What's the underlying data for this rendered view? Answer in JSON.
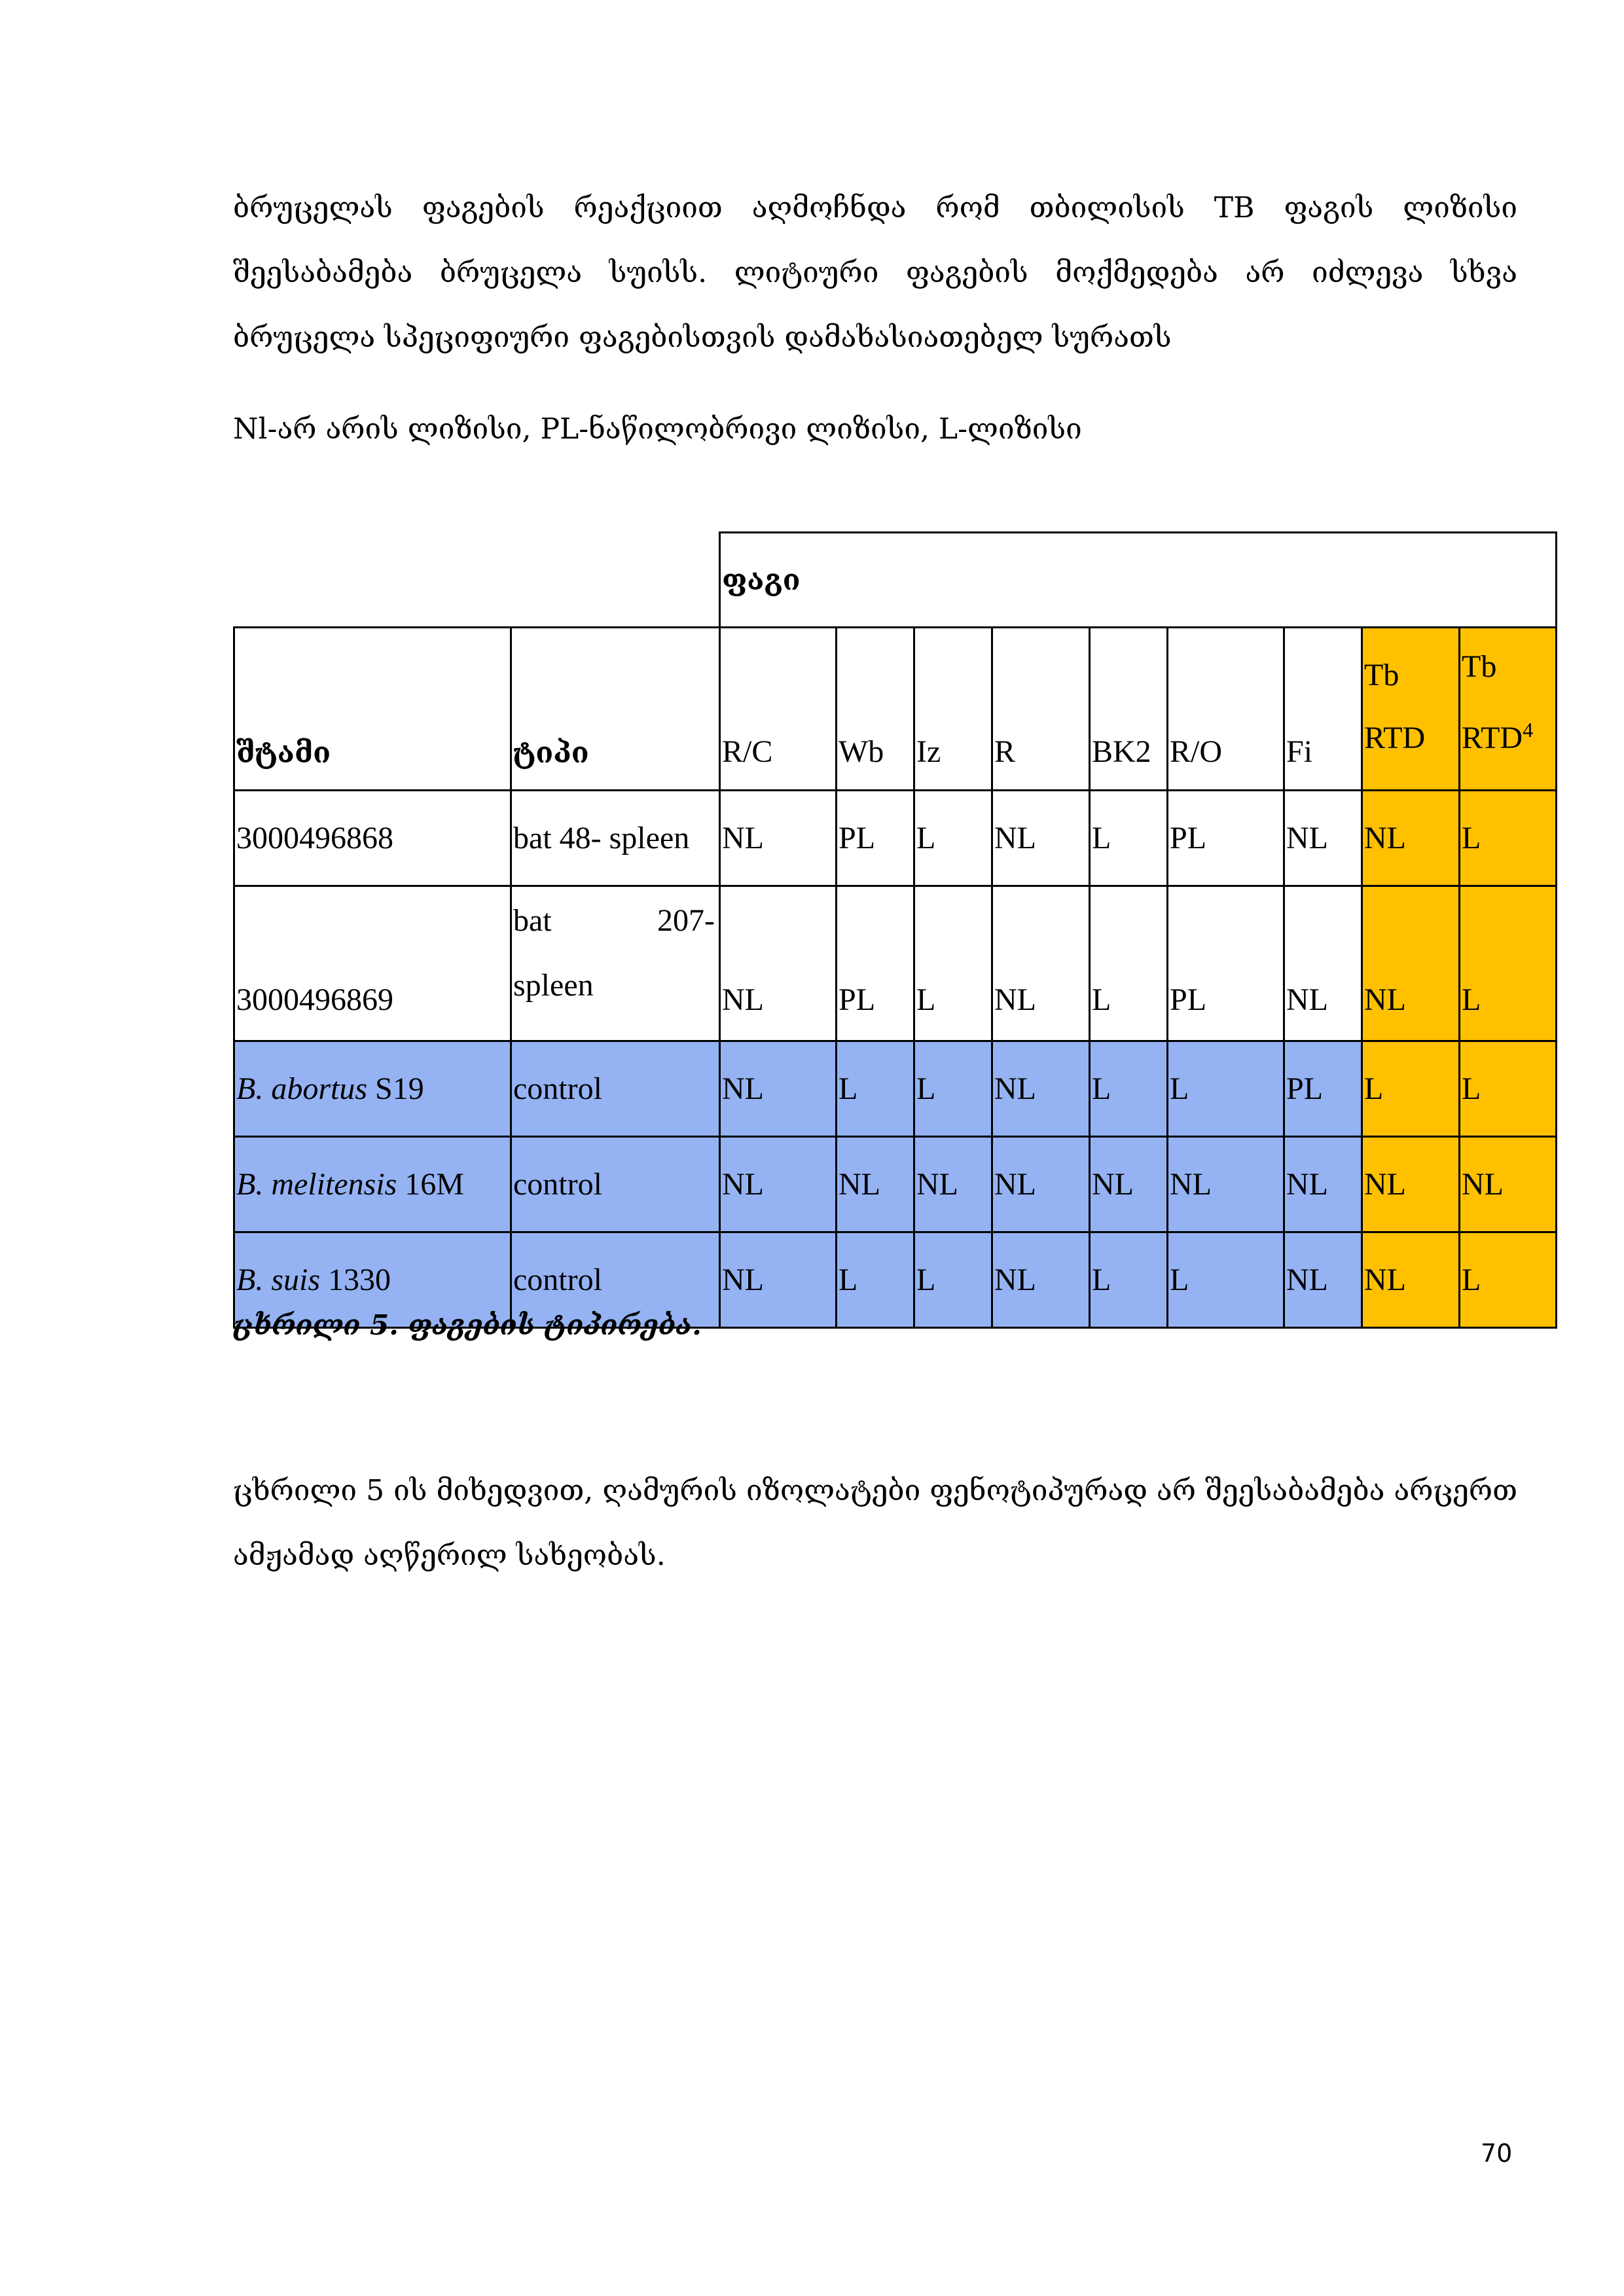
{
  "paragraphs": [
    "ბრუცელას ფაგების რეაქციით აღმოჩნდა რომ თბილისის TB ფაგის ლიზისი შეესაბამება ბრუცელა სუისს. ლიტიური ფაგების მოქმედება არ იძლევა სხვა ბრუცელა სპეციფიური ფაგებისთვის დამახასიათებელ სურათს",
    "Nl-არ არის ლიზისი, PL-ნაწილობრივი ლიზისი, L-ლიზისი",
    "ცხრილი 5 ის მიხედვით, ღამურის იზოლატები ფენოტიპურად არ შეესაბამება არცერთ ამჟამად აღწერილ სახეობას."
  ],
  "table": {
    "group_header": "ფაგი",
    "headers": {
      "strain": "შტამი",
      "type": "ტიპი",
      "phages": [
        "R/C",
        "Wb",
        "Iz",
        "R",
        "BK2",
        "R/O",
        "Fi"
      ],
      "tb_rtd": [
        "Tb",
        "RTD"
      ],
      "tb_rtd4": [
        "Tb",
        "RTD",
        "4"
      ]
    },
    "rows": [
      {
        "strain": "3000496868",
        "strain_italic": "",
        "type": "bat 48- spleen",
        "values": [
          "NL",
          "PL",
          "L",
          "NL",
          "L",
          "PL",
          "NL",
          "NL",
          "L"
        ]
      },
      {
        "strain": "3000496869",
        "strain_italic": "",
        "type_parts": [
          "bat",
          "207-",
          "spleen"
        ],
        "values": [
          "NL",
          "PL",
          "L",
          "NL",
          "L",
          "PL",
          "NL",
          "NL",
          "L"
        ]
      },
      {
        "strain_italic": "B. abortus",
        "strain": " S19",
        "type": "control",
        "values": [
          "NL",
          "L",
          "L",
          "NL",
          "L",
          "L",
          "PL",
          "L",
          "L"
        ]
      },
      {
        "strain_italic": "B. melitensis",
        "strain": " 16M",
        "type": "control",
        "values": [
          "NL",
          "NL",
          "NL",
          "NL",
          "NL",
          "NL",
          "NL",
          "NL",
          "NL"
        ]
      },
      {
        "strain_italic": "B. suis",
        "strain": " 1330",
        "type": "control",
        "values": [
          "NL",
          "L",
          "L",
          "NL",
          "L",
          "L",
          "NL",
          "NL",
          "L"
        ]
      }
    ],
    "colors": {
      "control_rows": "#95b3f3",
      "tb_columns": "#ffc000"
    }
  },
  "caption": "ცხრილი 5. ფაგების ტიპირება.",
  "page_number": "70"
}
